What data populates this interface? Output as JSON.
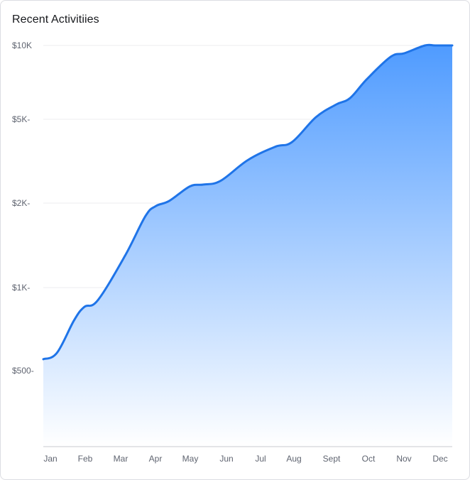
{
  "card": {
    "title": "Recent Activitiies"
  },
  "chart_data": {
    "type": "area",
    "title": "Recent Activitiies",
    "categories": [
      "Jan",
      "Feb",
      "Mar",
      "Apr",
      "May",
      "Jun",
      "Jul",
      "Aug",
      "Sept",
      "Oct",
      "Nov",
      "Dec"
    ],
    "y_tick_labels": [
      "$10K",
      "$5K-",
      "$2K-",
      "$1K-",
      "$500-"
    ],
    "y_tick_values": [
      10000,
      5000,
      2000,
      1000,
      500
    ],
    "y_scale": "log",
    "series": [
      {
        "x": [
          0,
          0.4,
          0.9,
          1.2,
          1.6,
          2.4,
          3.0,
          3.3,
          3.7,
          4.3,
          4.7,
          5.2,
          6.0,
          6.8,
          7.3,
          8.0,
          8.6,
          9.0,
          9.5,
          10.2,
          10.6,
          11.2,
          11.5,
          12.0
        ],
        "values": [
          550,
          580,
          760,
          850,
          900,
          1300,
          1800,
          1950,
          2050,
          2400,
          2450,
          2550,
          3200,
          3700,
          3900,
          5100,
          5750,
          6100,
          7300,
          9000,
          9300,
          10000,
          10000,
          10000
        ]
      }
    ],
    "grid": true,
    "legend": "none",
    "colors": {
      "line": "#1f74e8",
      "fill_top": "#4f9bff",
      "fill_bottom": "#ffffff",
      "grid": "#ececef",
      "axis": "#c7c9cf",
      "label": "#5f6470"
    }
  }
}
